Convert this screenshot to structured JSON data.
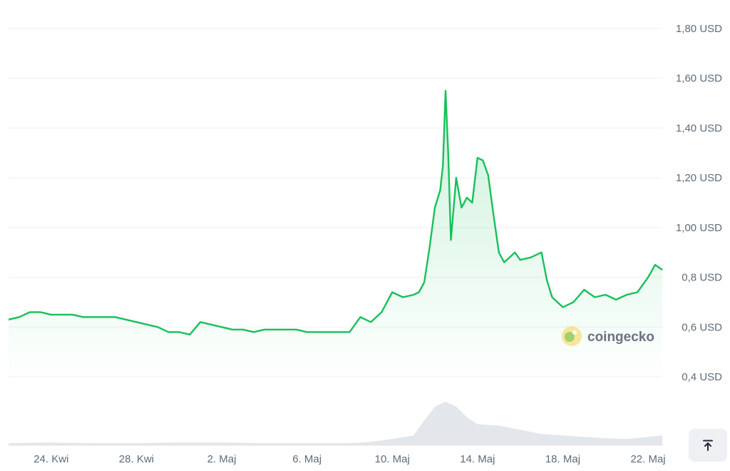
{
  "chart_data": {
    "type": "area",
    "watermark": "coingecko",
    "colors": {
      "line": "#16c15a",
      "fill_top": "#16c15a",
      "volume": "#e3e6ea"
    },
    "ylim": [
      0.38,
      1.88
    ],
    "y_ticks": [
      {
        "value": 1.8,
        "label": "1,80 USD"
      },
      {
        "value": 1.6,
        "label": "1,60 USD"
      },
      {
        "value": 1.4,
        "label": "1,40 USD"
      },
      {
        "value": 1.2,
        "label": "1,20 USD"
      },
      {
        "value": 1.0,
        "label": "1,00 USD"
      },
      {
        "value": 0.8,
        "label": "0,8 USD"
      },
      {
        "value": 0.6,
        "label": "0,6 USD"
      },
      {
        "value": 0.4,
        "label": "0,4 USD"
      }
    ],
    "x_range": [
      "2024-04-22",
      "2024-05-22T16:00"
    ],
    "x_ticks": [
      {
        "date": "2024-04-24",
        "label": "24. Kwi"
      },
      {
        "date": "2024-04-28",
        "label": "28. Kwi"
      },
      {
        "date": "2024-05-02",
        "label": "2. Maj"
      },
      {
        "date": "2024-05-06",
        "label": "6. Maj"
      },
      {
        "date": "2024-05-10",
        "label": "10. Maj"
      },
      {
        "date": "2024-05-14",
        "label": "14. Maj"
      },
      {
        "date": "2024-05-18",
        "label": "18. Maj"
      },
      {
        "date": "2024-05-22",
        "label": "22. Maj"
      }
    ],
    "series": [
      {
        "x": [
          "2024-04-22T00:00",
          "2024-04-22T12:00",
          "2024-04-23T00:00",
          "2024-04-23T12:00",
          "2024-04-24T00:00",
          "2024-04-24T12:00",
          "2024-04-25T00:00",
          "2024-04-25T12:00",
          "2024-04-26T00:00",
          "2024-04-26T12:00",
          "2024-04-27T00:00",
          "2024-04-27T12:00",
          "2024-04-28T00:00",
          "2024-04-28T12:00",
          "2024-04-29T00:00",
          "2024-04-29T12:00",
          "2024-04-30T00:00",
          "2024-04-30T12:00",
          "2024-05-01T00:00",
          "2024-05-01T12:00",
          "2024-05-02T00:00",
          "2024-05-02T12:00",
          "2024-05-03T00:00",
          "2024-05-03T12:00",
          "2024-05-04T00:00",
          "2024-05-04T12:00",
          "2024-05-05T00:00",
          "2024-05-05T12:00",
          "2024-05-06T00:00",
          "2024-05-06T12:00",
          "2024-05-07T00:00",
          "2024-05-07T12:00",
          "2024-05-08T00:00",
          "2024-05-08T12:00",
          "2024-05-09T00:00",
          "2024-05-09T12:00",
          "2024-05-10T00:00",
          "2024-05-10T12:00",
          "2024-05-11T00:00",
          "2024-05-11T06:00",
          "2024-05-11T12:00",
          "2024-05-11T18:00",
          "2024-05-12T00:00",
          "2024-05-12T06:00",
          "2024-05-12T09:00",
          "2024-05-12T12:00",
          "2024-05-12T15:00",
          "2024-05-12T18:00",
          "2024-05-13T00:00",
          "2024-05-13T06:00",
          "2024-05-13T12:00",
          "2024-05-13T18:00",
          "2024-05-14T00:00",
          "2024-05-14T06:00",
          "2024-05-14T12:00",
          "2024-05-14T18:00",
          "2024-05-15T00:00",
          "2024-05-15T06:00",
          "2024-05-15T12:00",
          "2024-05-15T18:00",
          "2024-05-16T00:00",
          "2024-05-16T12:00",
          "2024-05-17T00:00",
          "2024-05-17T06:00",
          "2024-05-17T12:00",
          "2024-05-18T00:00",
          "2024-05-18T12:00",
          "2024-05-19T00:00",
          "2024-05-19T12:00",
          "2024-05-20T00:00",
          "2024-05-20T12:00",
          "2024-05-21T00:00",
          "2024-05-21T12:00",
          "2024-05-22T00:00",
          "2024-05-22T08:00",
          "2024-05-22T16:00"
        ],
        "values": [
          0.63,
          0.64,
          0.66,
          0.66,
          0.65,
          0.65,
          0.65,
          0.64,
          0.64,
          0.64,
          0.64,
          0.63,
          0.62,
          0.61,
          0.6,
          0.58,
          0.58,
          0.57,
          0.62,
          0.61,
          0.6,
          0.59,
          0.59,
          0.58,
          0.59,
          0.59,
          0.59,
          0.59,
          0.58,
          0.58,
          0.58,
          0.58,
          0.58,
          0.64,
          0.62,
          0.66,
          0.74,
          0.72,
          0.73,
          0.74,
          0.78,
          0.92,
          1.08,
          1.15,
          1.25,
          1.55,
          1.3,
          0.95,
          1.2,
          1.08,
          1.12,
          1.1,
          1.28,
          1.27,
          1.21,
          1.05,
          0.9,
          0.86,
          0.88,
          0.9,
          0.87,
          0.88,
          0.9,
          0.79,
          0.72,
          0.68,
          0.7,
          0.75,
          0.72,
          0.73,
          0.71,
          0.73,
          0.74,
          0.8,
          0.85,
          0.83
        ]
      }
    ],
    "volume": {
      "x": [
        "2024-04-22",
        "2024-04-24",
        "2024-04-26",
        "2024-04-28",
        "2024-04-30",
        "2024-05-02",
        "2024-05-04",
        "2024-05-06",
        "2024-05-08",
        "2024-05-09",
        "2024-05-10",
        "2024-05-11",
        "2024-05-11T12:00",
        "2024-05-12",
        "2024-05-12T12:00",
        "2024-05-13",
        "2024-05-13T12:00",
        "2024-05-14",
        "2024-05-15",
        "2024-05-16",
        "2024-05-17",
        "2024-05-18",
        "2024-05-19",
        "2024-05-20",
        "2024-05-21",
        "2024-05-22T16:00"
      ],
      "values": [
        3,
        4,
        3,
        3,
        4,
        4,
        3,
        3,
        3,
        5,
        9,
        14,
        35,
        55,
        62,
        55,
        40,
        30,
        28,
        22,
        16,
        14,
        12,
        10,
        9,
        14
      ],
      "max": 70
    }
  },
  "controls": {
    "scroll_top_icon": "arrow-up-to-line-icon"
  }
}
